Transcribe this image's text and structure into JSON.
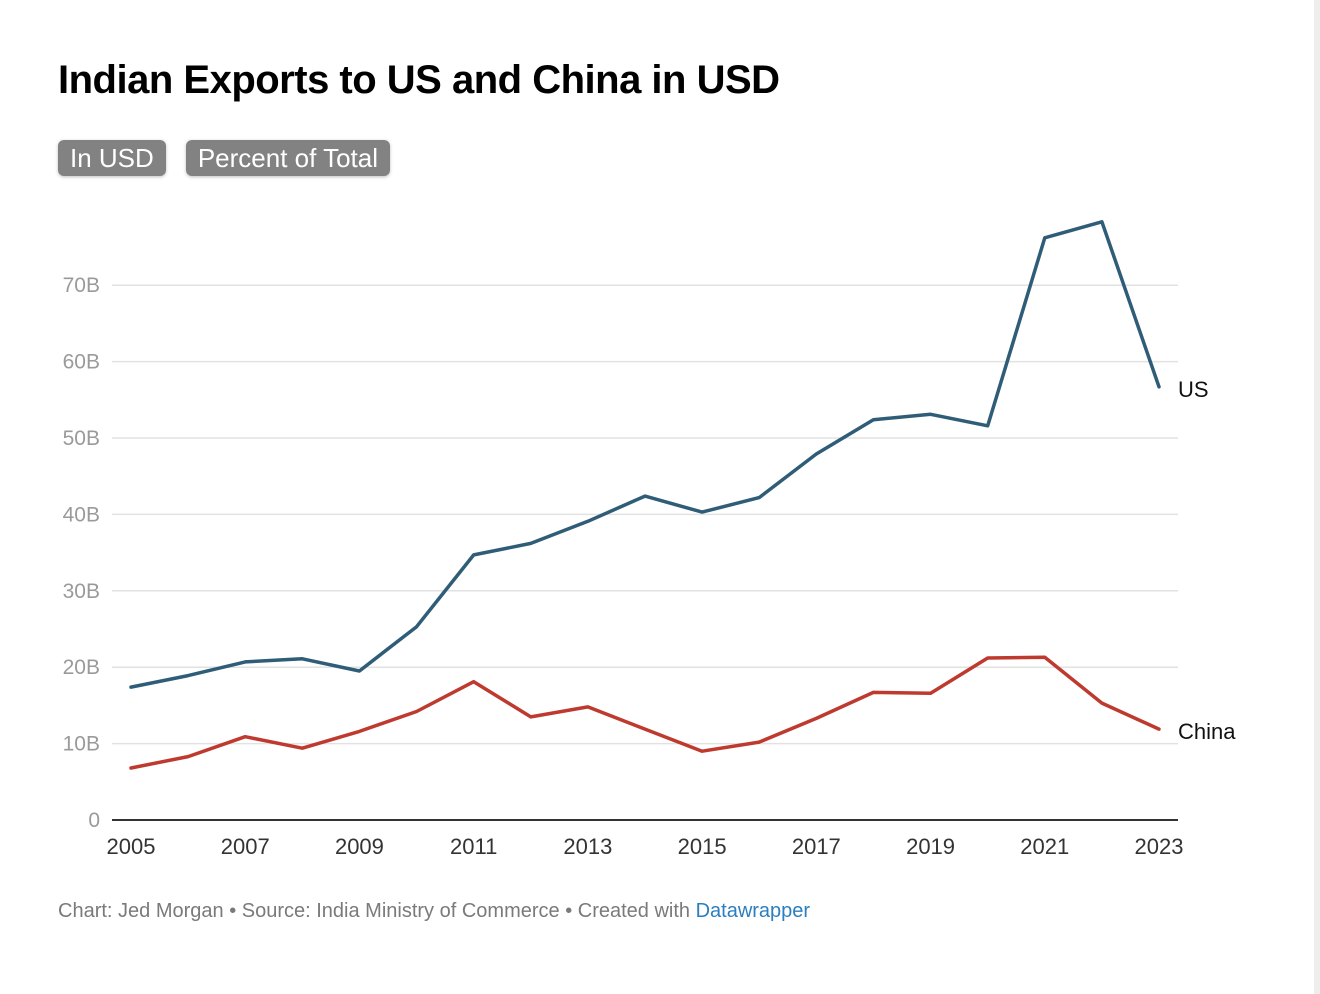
{
  "title": "Indian Exports to US and China in USD",
  "toggles": [
    "In USD",
    "Percent of Total"
  ],
  "footer": {
    "credit": "Chart: Jed Morgan • Source: India Ministry of Commerce • Created with ",
    "link": "Datawrapper"
  },
  "colors": {
    "us": "#2f5d78",
    "china": "#bf3a2e",
    "grid": "#e2e2e2",
    "axis": "#333333"
  },
  "chart_data": {
    "type": "line",
    "x": [
      2005,
      2006,
      2007,
      2008,
      2009,
      2010,
      2011,
      2012,
      2013,
      2014,
      2015,
      2016,
      2017,
      2018,
      2019,
      2020,
      2021,
      2022,
      2023
    ],
    "xticks": [
      "2005",
      "2007",
      "2009",
      "2011",
      "2013",
      "2015",
      "2017",
      "2019",
      "2021",
      "2023"
    ],
    "yticks": [
      0,
      10,
      20,
      30,
      40,
      50,
      60,
      70
    ],
    "ytick_labels": [
      "0",
      "10B",
      "20B",
      "30B",
      "40B",
      "50B",
      "60B",
      "70B"
    ],
    "ylim": [
      0,
      80
    ],
    "grid": true,
    "series": [
      {
        "name": "US",
        "color": "#2f5d78",
        "values": [
          17.4,
          18.9,
          20.7,
          21.1,
          19.5,
          25.3,
          34.7,
          36.2,
          39.1,
          42.4,
          40.3,
          42.2,
          47.9,
          52.4,
          53.1,
          51.6,
          76.2,
          78.3,
          56.7
        ]
      },
      {
        "name": "China",
        "color": "#bf3a2e",
        "values": [
          6.8,
          8.3,
          10.9,
          9.4,
          11.6,
          14.2,
          18.1,
          13.5,
          14.8,
          11.9,
          9.0,
          10.2,
          13.3,
          16.7,
          16.6,
          21.2,
          21.3,
          15.3,
          11.9
        ]
      }
    ]
  }
}
